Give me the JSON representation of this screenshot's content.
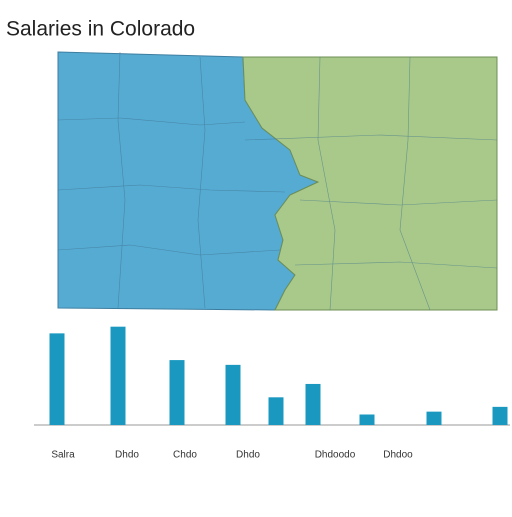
{
  "chart_data": {
    "type": "bar",
    "title": "Salaries in Colorado",
    "categories": [
      "Salra",
      "Dhdo",
      "Chdo",
      "Dhdo",
      null,
      "Dhdoodo",
      "Dhdoo",
      null,
      null
    ],
    "values": [
      96,
      103,
      68,
      63,
      29,
      43,
      11,
      14,
      19
    ],
    "color": "#1a98c0",
    "ylim": [
      0,
      110
    ]
  }
}
